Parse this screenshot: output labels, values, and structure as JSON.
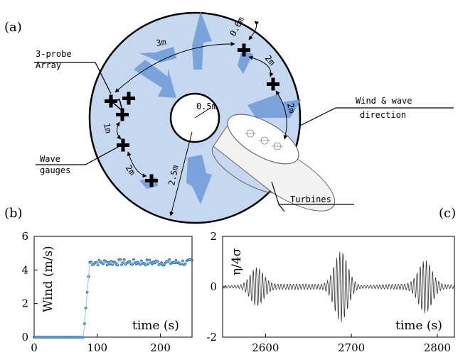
{
  "panel_labels": {
    "a": "(a)",
    "b": "(b)",
    "c": "(c)"
  },
  "diagram": {
    "labels": {
      "array": [
        "3-probe",
        "Array"
      ],
      "wave_gauges": [
        "Wave",
        "gauges"
      ],
      "wind_wave": [
        "Wind & wave",
        "direction"
      ],
      "turbines": "Turbines"
    },
    "distances": {
      "d_3m": "3m",
      "d_06m": "0.6m",
      "d_2m_a": "2m",
      "d_2m_b": "2m",
      "d_05m": "0.5m",
      "d_1m": "1m",
      "d_2m_c": "2m",
      "d_25m": "2.5m"
    },
    "colors": {
      "tank": "#c5d8ef",
      "arrow": "#6f9ad8",
      "outline": "#000000"
    }
  },
  "chart_data": [
    {
      "type": "scatter",
      "ylabel": "Wind (m/s)",
      "xlabel": "time (s)",
      "xlim": [
        0,
        250
      ],
      "ylim": [
        0,
        6
      ],
      "xticks": [
        "0",
        "100",
        "200"
      ],
      "yticks": [
        "0",
        "2",
        "4",
        "6"
      ],
      "color": "#1f6fba",
      "ramp": {
        "off_until": 78,
        "rise_end": 88,
        "plateau": 4.45
      },
      "sample_step": 2.1,
      "plateau_noise": 0.18
    },
    {
      "type": "line",
      "ylabel": "η/4σ",
      "xlabel": "time (s)",
      "xlim": [
        2550,
        2820
      ],
      "ylim": [
        -2,
        2
      ],
      "xticks": [
        "2600",
        "2700",
        "2800"
      ],
      "yticks": [
        "-2",
        "0",
        "2"
      ],
      "color": "#333333",
      "groups": [
        {
          "center": 2590,
          "amplitude": 0.7
        },
        {
          "center": 2688,
          "amplitude": 1.35
        },
        {
          "center": 2786,
          "amplitude": 0.95
        }
      ],
      "period": 3.6
    }
  ]
}
